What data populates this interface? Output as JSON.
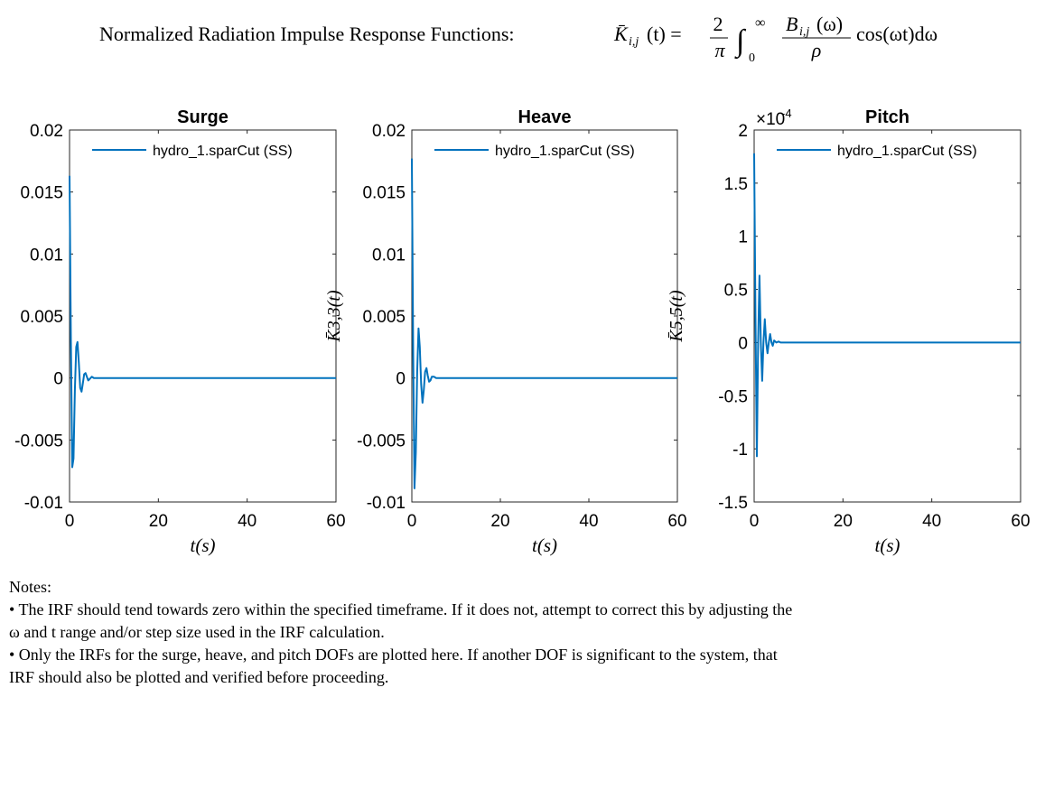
{
  "figure": {
    "supertitle_text": "Normalized Radiation Impulse Response Functions:",
    "supertitle_formula": {
      "lhs": "K̄",
      "lhs_sub": "i,j",
      "lhs_arg": "(t) =",
      "frac_num": "2",
      "frac_den": "π",
      "integral": "∫",
      "int_upper": "∞",
      "int_lower": "0",
      "frac2_num": "B",
      "frac2_num_sub": "i,j",
      "frac2_num_arg": "(ω)",
      "frac2_den": "ρ",
      "tail": "cos(ωt)dω"
    }
  },
  "chart_data": [
    {
      "type": "line",
      "title": "Surge",
      "xlabel": "t(s)",
      "ylabel": "",
      "xlim": [
        0,
        60
      ],
      "ylim": [
        -0.01,
        0.02
      ],
      "xticks": [
        0,
        20,
        40,
        60
      ],
      "xtick_labels": [
        "0",
        "20",
        "40",
        "60"
      ],
      "yticks": [
        -0.01,
        -0.005,
        0,
        0.005,
        0.01,
        0.015,
        0.02
      ],
      "ytick_labels": [
        "-0.01",
        "-0.005",
        "0",
        "0.005",
        "0.01",
        "0.015",
        "0.02"
      ],
      "exponent_label": "",
      "legend": "top",
      "series": [
        {
          "name": "hydro_1.sparCut (SS)",
          "color": "#0072BD",
          "x": [
            0,
            0.3,
            0.6,
            0.9,
            1.2,
            1.5,
            1.8,
            2.1,
            2.4,
            2.7,
            3.0,
            3.3,
            3.6,
            3.9,
            4.2,
            4.5,
            5.0,
            5.5,
            6.0,
            7.0,
            8.0,
            10,
            20,
            40,
            60
          ],
          "y": [
            0.0163,
            0.003,
            -0.0072,
            -0.0065,
            -0.001,
            0.0025,
            0.0029,
            0.0012,
            -0.0008,
            -0.0011,
            -0.0004,
            0.0003,
            0.0004,
            0.0001,
            -0.0002,
            -0.0001,
            0.0001,
            0.0,
            0.0,
            0.0,
            0.0,
            0.0,
            0.0,
            0.0,
            0.0
          ]
        }
      ]
    },
    {
      "type": "line",
      "title": "Heave",
      "xlabel": "t(s)",
      "ylabel": "K̄3,3(t)",
      "xlim": [
        0,
        60
      ],
      "ylim": [
        -0.01,
        0.02
      ],
      "xticks": [
        0,
        20,
        40,
        60
      ],
      "xtick_labels": [
        "0",
        "20",
        "40",
        "60"
      ],
      "yticks": [
        -0.01,
        -0.005,
        0,
        0.005,
        0.01,
        0.015,
        0.02
      ],
      "ytick_labels": [
        "-0.01",
        "-0.005",
        "0",
        "0.005",
        "0.01",
        "0.015",
        "0.02"
      ],
      "exponent_label": "",
      "legend": "top",
      "series": [
        {
          "name": "hydro_1.sparCut (SS)",
          "color": "#0072BD",
          "x": [
            0,
            0.3,
            0.6,
            0.9,
            1.2,
            1.5,
            1.8,
            2.1,
            2.4,
            2.7,
            3.0,
            3.3,
            3.6,
            3.9,
            4.2,
            4.5,
            5.0,
            5.5,
            6.0,
            7.0,
            8.0,
            10,
            20,
            40,
            60
          ],
          "y": [
            0.0177,
            0.002,
            -0.0089,
            -0.006,
            0.0005,
            0.004,
            0.0025,
            -0.0005,
            -0.002,
            -0.001,
            0.0005,
            0.0008,
            0.0002,
            -0.0003,
            -0.0002,
            0.0001,
            0.0001,
            0.0,
            0.0,
            0.0,
            0.0,
            0.0,
            0.0,
            0.0,
            0.0
          ]
        }
      ]
    },
    {
      "type": "line",
      "title": "Pitch",
      "xlabel": "t(s)",
      "ylabel": "K̄5,5(t)",
      "xlim": [
        0,
        60
      ],
      "ylim": [
        -1.5,
        2
      ],
      "xticks": [
        0,
        20,
        40,
        60
      ],
      "xtick_labels": [
        "0",
        "20",
        "40",
        "60"
      ],
      "yticks": [
        -1.5,
        -1,
        -0.5,
        0,
        0.5,
        1,
        1.5,
        2
      ],
      "ytick_labels": [
        "-1.5",
        "-1",
        "-0.5",
        "0",
        "0.5",
        "1",
        "1.5",
        "2"
      ],
      "exponent_label": "×10",
      "exponent_power": "-4",
      "legend": "top",
      "series": [
        {
          "name": "hydro_1.sparCut (SS)",
          "color": "#0072BD",
          "x": [
            0,
            0.3,
            0.6,
            0.9,
            1.2,
            1.5,
            1.8,
            2.1,
            2.4,
            2.7,
            3.0,
            3.3,
            3.6,
            3.9,
            4.2,
            4.5,
            5.0,
            5.5,
            6.0,
            7.0,
            8.0,
            10,
            20,
            40,
            60
          ],
          "y": [
            1.78,
            0.2,
            -1.07,
            0.0,
            0.63,
            0.0,
            -0.36,
            0.0,
            0.22,
            0.0,
            -0.1,
            0.0,
            0.08,
            0.0,
            -0.03,
            0.02,
            0.0,
            0.01,
            0.0,
            0.0,
            0.0,
            0.0,
            0.0,
            0.0,
            0.0
          ]
        }
      ]
    }
  ],
  "notes": {
    "heading": "Notes:",
    "bullet1_a": "• The IRF should tend towards zero within the specified timeframe. If it does not, attempt to correct this by adjusting the",
    "bullet1_b": "ω and t range and/or step size used in the IRF calculation.",
    "bullet2_a": "• Only the IRFs for the surge, heave, and pitch DOFs are plotted here. If another DOF is significant to the system, that",
    "bullet2_b": "IRF should also be plotted and verified before proceeding."
  }
}
